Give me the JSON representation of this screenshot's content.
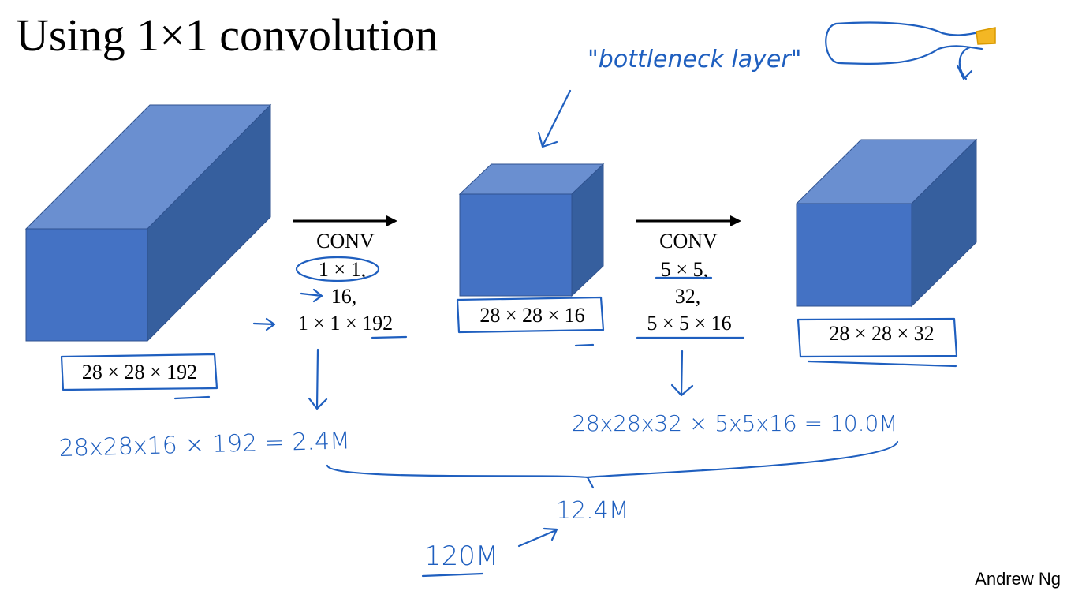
{
  "title": "Using 1×1 convolution",
  "volumes": [
    {
      "label": "28 × 28 × 192"
    },
    {
      "label": "28 × 28 × 16"
    },
    {
      "label": "28 × 28 × 32"
    }
  ],
  "convs": [
    {
      "lines": [
        "CONV",
        "1 × 1,",
        "16,",
        "1 × 1 × 192"
      ]
    },
    {
      "lines": [
        "CONV",
        "5 × 5,",
        "32,",
        "5 × 5 × 16"
      ]
    }
  ],
  "annotations": {
    "bottleneck": "\"bottleneck layer\"",
    "cost1": "28x28x16 × 192 = 2.4M",
    "cost2": "28x28x32 × 5x5x16 = 10.0M",
    "total": "12.4M",
    "naive": "120M"
  },
  "author": "Andrew Ng"
}
